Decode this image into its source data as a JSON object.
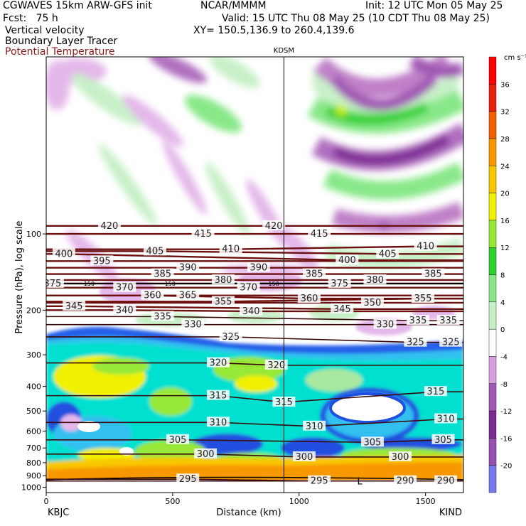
{
  "header": {
    "model": "CGWAVES 15km ARW-GFS init",
    "fcst": "Fcst:   75 h",
    "var1": "Vertical velocity",
    "var2": "Boundary Layer Tracer",
    "var3": "Potential Temperature",
    "org": "NCAR/MMMM",
    "init": "Init: 12 UTC Mon 05 May 25",
    "valid": "Valid: 15 UTC Thu 08 May 25 (10 CDT Thu 08 May 25)",
    "xy": "XY= 150.5,136.9 to 260.4,139.6"
  },
  "chart_data": {
    "type": "heatmap",
    "title": "",
    "station_marker": {
      "label": "KDSM",
      "x_km": 940
    },
    "xlabel": "Distance (km)",
    "ylabel": "Pressure (hPa), log scale",
    "x_ticks": [
      0,
      500,
      1000,
      1500
    ],
    "xlim": [
      0,
      1650
    ],
    "y_ticks": [
      100,
      200,
      300,
      400,
      500,
      600,
      700,
      800,
      900,
      1000
    ],
    "ylim_hpa": [
      1050,
      20
    ],
    "y_scale": "log",
    "left_endpoint": "KBJC",
    "right_endpoint": "KIND",
    "colorbar": {
      "units": "cm s⁻¹",
      "levels": [
        -20,
        -16,
        -12,
        -8,
        -4,
        0,
        4,
        8,
        12,
        16,
        20,
        24,
        28,
        32,
        36
      ],
      "colors": [
        "#7878ee",
        "#9850b0",
        "#7e2c94",
        "#a058b4",
        "#d8a0dc",
        "#ffffff",
        "#c8f0c8",
        "#88e888",
        "#30d030",
        "#98e838",
        "#f0f000",
        "#f8c800",
        "#f89800",
        "#f06000",
        "#e82010",
        "#ff0000"
      ]
    },
    "theta_labels": [
      {
        "value": "420",
        "x_km": 250,
        "p": 93
      },
      {
        "value": "420",
        "x_km": 900,
        "p": 93
      },
      {
        "value": "415",
        "x_km": 620,
        "p": 100
      },
      {
        "value": "415",
        "x_km": 1080,
        "p": 100
      },
      {
        "value": "410",
        "x_km": 730,
        "p": 115
      },
      {
        "value": "410",
        "x_km": 1500,
        "p": 112
      },
      {
        "value": "405",
        "x_km": 430,
        "p": 117
      },
      {
        "value": "405",
        "x_km": 1350,
        "p": 120
      },
      {
        "value": "400",
        "x_km": 70,
        "p": 120
      },
      {
        "value": "400",
        "x_km": 1190,
        "p": 127
      },
      {
        "value": "395",
        "x_km": 220,
        "p": 128
      },
      {
        "value": "390",
        "x_km": 560,
        "p": 136
      },
      {
        "value": "390",
        "x_km": 840,
        "p": 136
      },
      {
        "value": "385",
        "x_km": 460,
        "p": 144
      },
      {
        "value": "385",
        "x_km": 1060,
        "p": 144
      },
      {
        "value": "385",
        "x_km": 1530,
        "p": 144
      },
      {
        "value": "380",
        "x_km": 700,
        "p": 152
      },
      {
        "value": "380",
        "x_km": 1300,
        "p": 152
      },
      {
        "value": "375",
        "x_km": 25,
        "p": 157
      },
      {
        "value": "375",
        "x_km": 1160,
        "p": 157
      },
      {
        "value": "370",
        "x_km": 310,
        "p": 163
      },
      {
        "value": "370",
        "x_km": 800,
        "p": 163
      },
      {
        "value": "365",
        "x_km": 560,
        "p": 175
      },
      {
        "value": "360",
        "x_km": 420,
        "p": 175
      },
      {
        "value": "360",
        "x_km": 1040,
        "p": 180
      },
      {
        "value": "355",
        "x_km": 700,
        "p": 185
      },
      {
        "value": "355",
        "x_km": 1490,
        "p": 180
      },
      {
        "value": "350",
        "x_km": 1290,
        "p": 187
      },
      {
        "value": "345",
        "x_km": 110,
        "p": 193
      },
      {
        "value": "345",
        "x_km": 1170,
        "p": 198
      },
      {
        "value": "340",
        "x_km": 310,
        "p": 200
      },
      {
        "value": "340",
        "x_km": 810,
        "p": 202
      },
      {
        "value": "335",
        "x_km": 460,
        "p": 212
      },
      {
        "value": "335",
        "x_km": 1470,
        "p": 220
      },
      {
        "value": "335",
        "x_km": 1590,
        "p": 220
      },
      {
        "value": "330",
        "x_km": 580,
        "p": 228
      },
      {
        "value": "330",
        "x_km": 1340,
        "p": 228
      },
      {
        "value": "325",
        "x_km": 730,
        "p": 255
      },
      {
        "value": "325",
        "x_km": 1460,
        "p": 268
      },
      {
        "value": "325",
        "x_km": 1600,
        "p": 268
      },
      {
        "value": "320",
        "x_km": 680,
        "p": 323
      },
      {
        "value": "320",
        "x_km": 910,
        "p": 330
      },
      {
        "value": "315",
        "x_km": 680,
        "p": 435
      },
      {
        "value": "315",
        "x_km": 940,
        "p": 462
      },
      {
        "value": "315",
        "x_km": 1540,
        "p": 420
      },
      {
        "value": "310",
        "x_km": 680,
        "p": 555
      },
      {
        "value": "310",
        "x_km": 1580,
        "p": 538
      },
      {
        "value": "310",
        "x_km": 1060,
        "p": 575
      },
      {
        "value": "305",
        "x_km": 520,
        "p": 650
      },
      {
        "value": "305",
        "x_km": 1290,
        "p": 665
      },
      {
        "value": "305",
        "x_km": 1570,
        "p": 650
      },
      {
        "value": "300",
        "x_km": 630,
        "p": 740
      },
      {
        "value": "300",
        "x_km": 1020,
        "p": 760
      },
      {
        "value": "300",
        "x_km": 1400,
        "p": 760
      },
      {
        "value": "295",
        "x_km": 560,
        "p": 930
      },
      {
        "value": "295",
        "x_km": 1080,
        "p": 945
      },
      {
        "value": "290",
        "x_km": 1420,
        "p": 945
      },
      {
        "value": "290",
        "x_km": 1580,
        "p": 945
      }
    ],
    "tropopause_labels": [
      {
        "value": "150",
        "x_km": 170,
        "p": 157
      },
      {
        "value": "150",
        "x_km": 490,
        "p": 157
      },
      {
        "value": "150",
        "x_km": 900,
        "p": 157
      }
    ],
    "surface_label": {
      "value": "L",
      "x_km": 1240,
      "p": 950
    }
  }
}
